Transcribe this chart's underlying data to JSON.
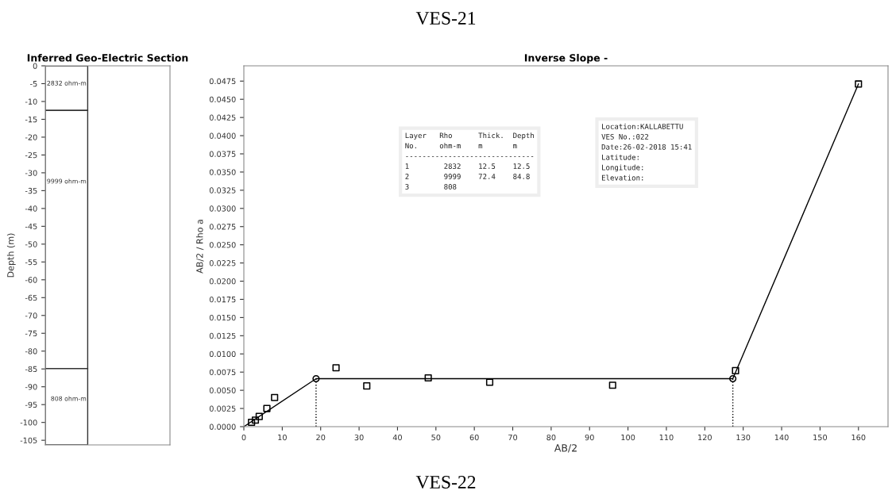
{
  "chart_data": [
    {
      "type": "bar",
      "stacked": true,
      "title": "Inferred Geo-Electric Section",
      "ylabel": "Depth (m)",
      "categories": [
        null
      ],
      "series": [
        {
          "name": "2832 ohm-m",
          "color": "#ffffff",
          "values": [
            -12.5
          ]
        },
        {
          "name": "9999 ohm-m",
          "color": "#ffffff",
          "values": [
            -72.4
          ]
        },
        {
          "name": "808 ohm-m",
          "color": "#ffffff",
          "values": [
            -21.4
          ]
        }
      ],
      "ylim": [
        -106.3,
        0
      ],
      "yticks": [
        0,
        -5,
        -10,
        -15,
        -20,
        -25,
        -30,
        -35,
        -40,
        -45,
        -50,
        -55,
        -60,
        -65,
        -70,
        -75,
        -80,
        -85,
        -90,
        -95,
        -100,
        -105
      ],
      "tick_labels": "y",
      "grid": false,
      "annotations": [
        "VES-21",
        "VES-22"
      ]
    },
    {
      "type": "scatter",
      "title": "Inverse Slope -",
      "xlabel": "AB/2",
      "ylabel": "AB/2 / Rho a",
      "series": [
        {
          "type": "scatter",
          "marker": "square",
          "color": "#000000",
          "x": [
            2,
            3,
            4,
            6,
            8,
            24,
            32,
            48,
            64,
            96,
            128,
            160
          ],
          "values": [
            0.0006,
            0.0009,
            0.0014,
            0.0025,
            0.004,
            0.0081,
            0.0056,
            0.0067,
            0.0061,
            0.0057,
            0.0077,
            0.0471
          ]
        },
        {
          "type": "line",
          "marker": "none",
          "line_style": "solid",
          "color": "#000000",
          "x": [
            0,
            18.8,
            127.3,
            160
          ],
          "values": [
            0,
            0.0066,
            0.0066,
            0.0471
          ]
        },
        {
          "type": "scatter",
          "marker": "circle",
          "color": "#000000",
          "x": [
            18.8,
            127.3
          ],
          "values": [
            0.0066,
            0.0066
          ]
        },
        {
          "type": "line",
          "marker": "none",
          "line_style": "dotted",
          "color": "#000000",
          "x": [
            18.8,
            18.8
          ],
          "values": [
            0,
            0.0066
          ]
        },
        {
          "type": "line",
          "marker": "none",
          "line_style": "dotted",
          "color": "#000000",
          "x": [
            127.3,
            127.3
          ],
          "values": [
            0,
            0.0066
          ]
        }
      ],
      "xlim": [
        0,
        167.7
      ],
      "xticks": [
        0,
        10,
        20,
        30,
        40,
        50,
        60,
        70,
        80,
        90,
        100,
        110,
        120,
        130,
        140,
        150,
        160
      ],
      "ylim": [
        0,
        0.0496
      ],
      "yticks": [
        {
          "value": 0,
          "label": "0.0000"
        },
        {
          "value": 0.0025,
          "label": "0.0025"
        },
        {
          "value": 0.005,
          "label": "0.0050"
        },
        {
          "value": 0.0075,
          "label": "0.0075"
        },
        {
          "value": 0.01,
          "label": "0.0100"
        },
        {
          "value": 0.0125,
          "label": "0.0125"
        },
        {
          "value": 0.015,
          "label": "0.0150"
        },
        {
          "value": 0.0175,
          "label": "0.0175"
        },
        {
          "value": 0.02,
          "label": "0.0200"
        },
        {
          "value": 0.0225,
          "label": "0.0225"
        },
        {
          "value": 0.025,
          "label": "0.0250"
        },
        {
          "value": 0.0275,
          "label": "0.0275"
        },
        {
          "value": 0.03,
          "label": "0.0300"
        },
        {
          "value": 0.0325,
          "label": "0.0325"
        },
        {
          "value": 0.035,
          "label": "0.0350"
        },
        {
          "value": 0.0375,
          "label": "0.0375"
        },
        {
          "value": 0.04,
          "label": "0.0400"
        },
        {
          "value": 0.0425,
          "label": "0.0425"
        },
        {
          "value": 0.045,
          "label": "0.0450"
        },
        {
          "value": 0.0475,
          "label": "0.0475"
        }
      ],
      "grid": false,
      "annotations": [
        "Layer   Rho      Thick.  Depth\nNo.     ohm-m    m       m\n------------------------------\n1        2832    12.5    12.5\n2        9999    72.4    84.8\n3        808",
        "Location:KALLABETTU\nVES No.:022\nDate:26-02-2018 15:41\nLatitude:\nLongitude:\nElevation:"
      ]
    }
  ]
}
